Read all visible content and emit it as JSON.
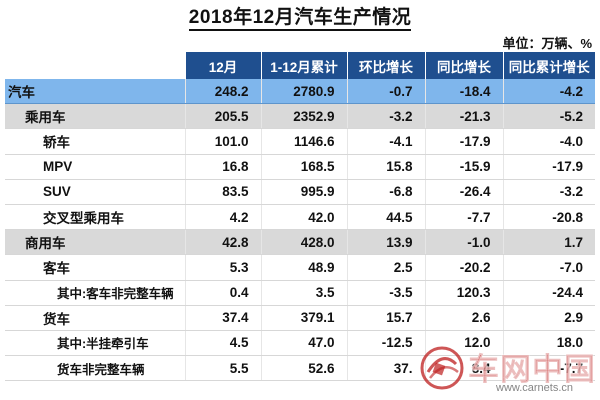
{
  "title": "2018年12月汽车生产情况",
  "unit": "单位：万辆、%",
  "headers": [
    "",
    "12月",
    "1-12月累计",
    "环比增长",
    "同比增长",
    "同比累计增长"
  ],
  "rows": [
    {
      "name": "汽车",
      "level": 0,
      "values": [
        "248.2",
        "2780.9",
        "-0.7",
        "-18.4",
        "-4.2"
      ]
    },
    {
      "name": "乘用车",
      "level": 1,
      "values": [
        "205.5",
        "2352.9",
        "-3.2",
        "-21.3",
        "-5.2"
      ]
    },
    {
      "name": "轿车",
      "level": 2,
      "values": [
        "101.0",
        "1146.6",
        "-4.1",
        "-17.9",
        "-4.0"
      ]
    },
    {
      "name": "MPV",
      "level": 2,
      "values": [
        "16.8",
        "168.5",
        "15.8",
        "-15.9",
        "-17.9"
      ]
    },
    {
      "name": "SUV",
      "level": 2,
      "values": [
        "83.5",
        "995.9",
        "-6.8",
        "-26.4",
        "-3.2"
      ]
    },
    {
      "name": "交叉型乘用车",
      "level": 2,
      "values": [
        "4.2",
        "42.0",
        "44.5",
        "-7.7",
        "-20.8"
      ]
    },
    {
      "name": "商用车",
      "level": 1,
      "values": [
        "42.8",
        "428.0",
        "13.9",
        "-1.0",
        "1.7"
      ]
    },
    {
      "name": "客车",
      "level": 2,
      "values": [
        "5.3",
        "48.9",
        "2.5",
        "-20.2",
        "-7.0"
      ]
    },
    {
      "name": "其中:客车非完整车辆",
      "level": 3,
      "values": [
        "0.4",
        "3.5",
        "-3.5",
        "120.3",
        "-24.4"
      ]
    },
    {
      "name": "货车",
      "level": 2,
      "values": [
        "37.4",
        "379.1",
        "15.7",
        "2.6",
        "2.9"
      ]
    },
    {
      "name": "其中:半挂牵引车",
      "level": 3,
      "values": [
        "4.5",
        "47.0",
        "-12.5",
        "12.0",
        "18.0"
      ]
    },
    {
      "name": "货车非完整车辆",
      "level": 3,
      "values": [
        "5.5",
        "52.6",
        "37.",
        "8.4",
        "-7.7"
      ]
    }
  ],
  "watermark": {
    "text": "车网中国",
    "url": "www.carnets.cn",
    "color": "#be1e1e"
  }
}
